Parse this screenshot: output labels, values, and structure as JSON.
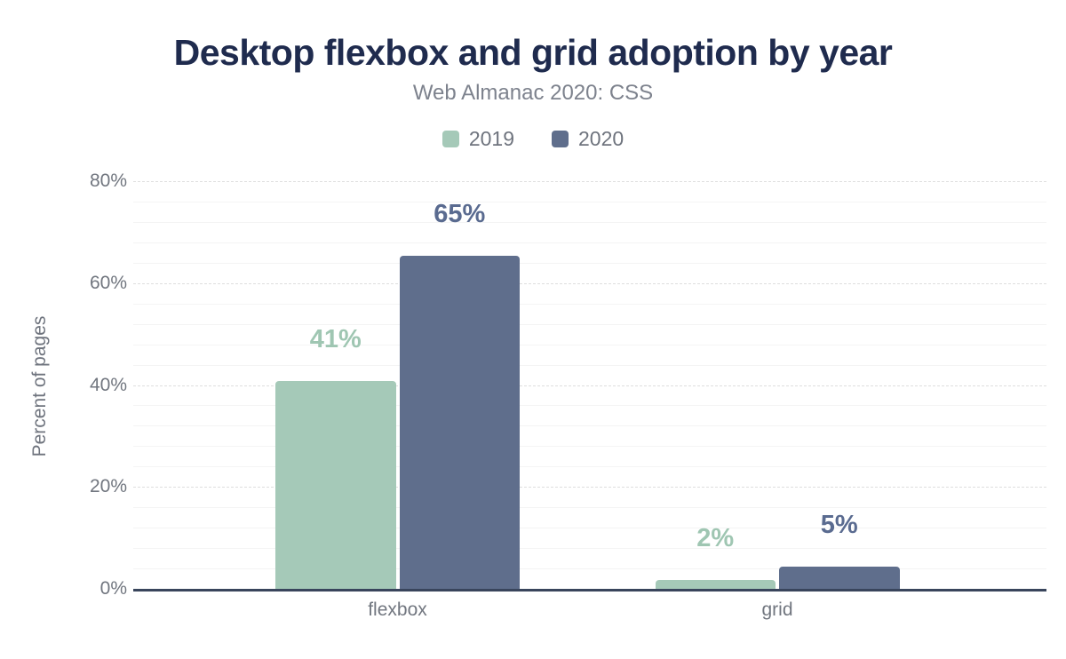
{
  "chart": {
    "title": "Desktop flexbox and grid adoption by year",
    "subtitle": "Web Almanac 2020: CSS",
    "ylabel": "Percent of pages"
  },
  "palette": {
    "title_color": "#1f2b4e",
    "subtitle_color": "#7d828d",
    "axis_text_color": "#71767f",
    "axis_line_color": "#39455c",
    "series_2019_color": "#a5c9b8",
    "series_2020_color": "#5f6e8c"
  },
  "chart_data": {
    "type": "bar",
    "title": "Desktop flexbox and grid adoption by year",
    "subtitle": "Web Almanac 2020: CSS",
    "categories": [
      "flexbox",
      "grid"
    ],
    "series": [
      {
        "name": "2019",
        "color": "#a5c9b8",
        "label_color": "#9fc6b2",
        "values": [
          41,
          2
        ],
        "display_labels": [
          "41%",
          "2%"
        ],
        "bar_heights_pct": [
          40.8,
          1.7
        ]
      },
      {
        "name": "2020",
        "color": "#5f6e8c",
        "label_color": "#5a6b90",
        "values": [
          65,
          5
        ],
        "display_labels": [
          "65%",
          "5%"
        ],
        "bar_heights_pct": [
          65.3,
          4.4
        ]
      }
    ],
    "xlabel": "",
    "ylabel": "Percent of pages",
    "ylim": [
      0,
      80
    ],
    "yticks": [
      0,
      20,
      40,
      60,
      80
    ],
    "ytick_labels": [
      "0%",
      "20%",
      "40%",
      "60%",
      "80%"
    ],
    "minor_grid_step": 4,
    "grid": "on",
    "legend_position": "top",
    "legend_entries": [
      "2019",
      "2020"
    ]
  }
}
